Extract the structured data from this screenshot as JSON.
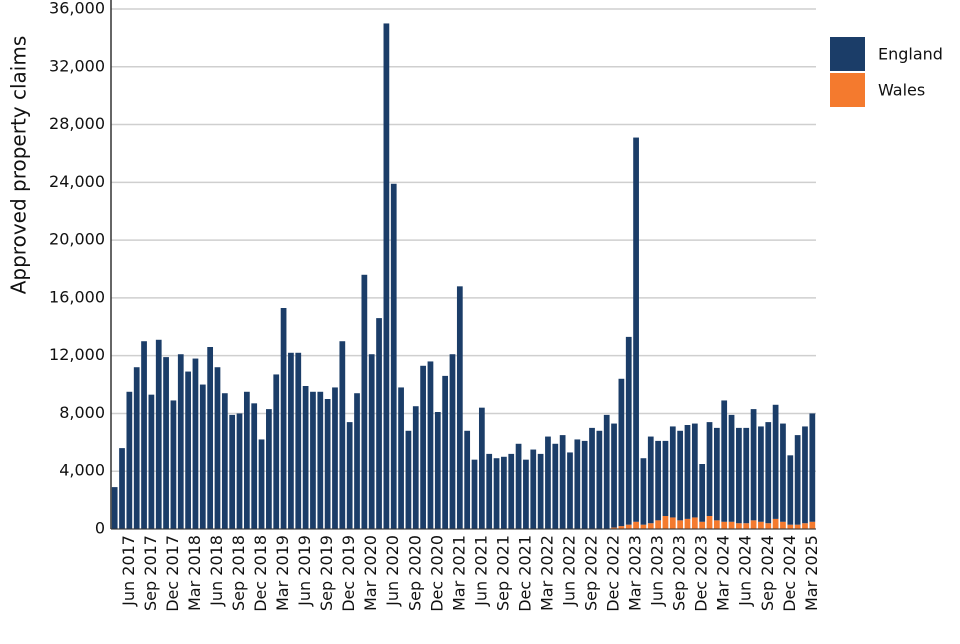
{
  "chart_data": {
    "type": "stacked_bar",
    "ylabel": "Approved property claims",
    "categories": [
      null,
      null,
      "Jun 2017",
      null,
      null,
      "Sep 2017",
      null,
      null,
      "Dec 2017",
      null,
      null,
      "Mar 2018",
      null,
      null,
      "Jun 2018",
      null,
      null,
      "Sep 2018",
      null,
      null,
      "Dec 2018",
      null,
      null,
      "Mar 2019",
      null,
      null,
      "Jun 2019",
      null,
      null,
      "Sep 2019",
      null,
      null,
      "Dec 2019",
      null,
      null,
      "Mar 2020",
      null,
      null,
      "Jun 2020",
      null,
      null,
      "Sep 2020",
      null,
      null,
      "Dec 2020",
      null,
      null,
      "Mar 2021",
      null,
      null,
      "Jun 2021",
      null,
      null,
      "Sep 2021",
      null,
      null,
      "Dec 2021",
      null,
      null,
      "Mar 2022",
      null,
      null,
      "Jun 2022",
      null,
      null,
      "Sep 2022",
      null,
      null,
      "Dec 2022",
      null,
      null,
      "Mar 2023",
      null,
      null,
      "Jun 2023",
      null,
      null,
      "Sep 2023",
      null,
      null,
      "Dec 2023",
      null,
      null,
      "Mar 2024",
      null,
      null,
      "Jun 2024",
      null,
      null,
      "Sep 2024",
      null,
      null,
      "Dec 2024",
      null,
      null,
      "Mar 2025"
    ],
    "series": [
      {
        "name": "England",
        "color": "#1b3d68",
        "values": [
          2900,
          5600,
          9500,
          11200,
          13000,
          9300,
          13100,
          11900,
          8900,
          12100,
          10900,
          11800,
          10000,
          12600,
          11200,
          9400,
          7900,
          8000,
          9500,
          8700,
          6200,
          8300,
          10700,
          15300,
          12200,
          12200,
          9900,
          9500,
          9500,
          9000,
          9800,
          13000,
          7400,
          9400,
          17600,
          12100,
          14600,
          35000,
          23900,
          9800,
          6800,
          8500,
          11300,
          11600,
          8100,
          10600,
          12100,
          16800,
          6800,
          4800,
          8400,
          5200,
          4900,
          5000,
          5200,
          5900,
          4800,
          5500,
          5200,
          6400,
          5900,
          6500,
          5300,
          6200,
          6100,
          7000,
          6800,
          7900,
          7200,
          10200,
          13000,
          26600,
          4600,
          6000,
          5500,
          5200,
          6300,
          6200,
          6500,
          6500,
          4000,
          6500,
          6400,
          8400,
          7400,
          6600,
          6600,
          7700,
          6600,
          7000,
          7900,
          6800,
          4800,
          6200,
          6700,
          7500
        ]
      },
      {
        "name": "Wales",
        "color": "#f47a2e",
        "values": [
          0,
          0,
          0,
          0,
          0,
          0,
          0,
          0,
          0,
          0,
          0,
          0,
          0,
          0,
          0,
          0,
          0,
          0,
          0,
          0,
          0,
          0,
          0,
          0,
          0,
          0,
          0,
          0,
          0,
          0,
          0,
          0,
          0,
          0,
          0,
          0,
          0,
          0,
          0,
          0,
          0,
          0,
          0,
          0,
          0,
          0,
          0,
          0,
          0,
          0,
          0,
          0,
          0,
          0,
          0,
          0,
          0,
          0,
          0,
          0,
          0,
          0,
          0,
          0,
          0,
          0,
          0,
          0,
          100,
          200,
          300,
          500,
          300,
          400,
          600,
          900,
          800,
          600,
          700,
          800,
          500,
          900,
          600,
          500,
          500,
          400,
          400,
          600,
          500,
          400,
          700,
          500,
          300,
          300,
          400,
          500
        ]
      }
    ],
    "ylim": [
      0,
      36000
    ],
    "yticks": [
      0,
      {
        "value": 4000,
        "label": "4,000"
      },
      {
        "value": 8000,
        "label": "8,000"
      },
      {
        "value": 12000,
        "label": "12,000"
      },
      {
        "value": 16000,
        "label": "16,000"
      },
      {
        "value": 20000,
        "label": "20,000"
      },
      {
        "value": 24000,
        "label": "24,000"
      },
      {
        "value": 28000,
        "label": "28,000"
      },
      {
        "value": 32000,
        "label": "32,000"
      },
      {
        "value": 36000,
        "label": "36,000"
      }
    ],
    "grid": true,
    "legend": "right"
  }
}
